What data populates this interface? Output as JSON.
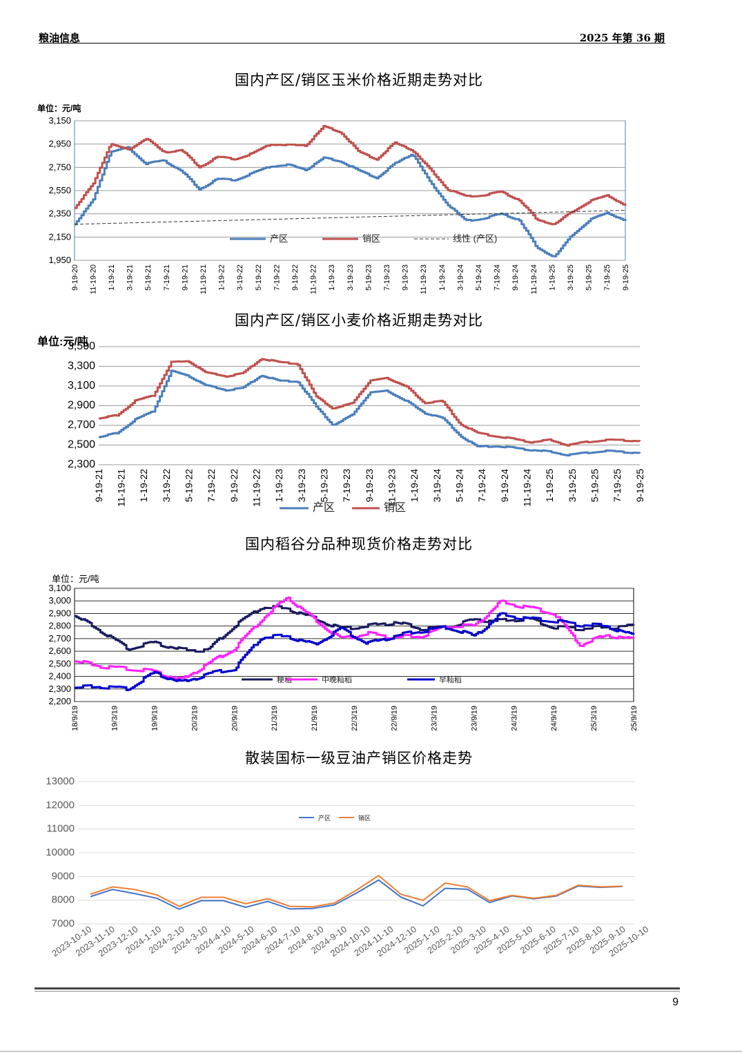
{
  "header": {
    "left": "粮油信息",
    "right": "2025 年第 36 期"
  },
  "page_number": "9",
  "colors": {
    "chanqu": "#4a7ebb",
    "xiaoqu": "#c0504d",
    "geng": "#1a1a5e",
    "zhongwan": "#ff22ff",
    "zao": "#0000cc",
    "oil_chanqu": "#4472c4",
    "oil_xiaoqu": "#ed7d31",
    "trend": "#333333"
  },
  "chart_data": [
    {
      "type": "line",
      "title": "国内产区/销区玉米价格近期走势对比",
      "ylabel": "单位：元/吨",
      "ylim": [
        1950,
        3150
      ],
      "yticks": [
        "1,950",
        "2,150",
        "2,350",
        "2,550",
        "2,750",
        "2,950",
        "3,150"
      ],
      "xticks": [
        "9-19-20",
        "11-19-20",
        "1-19-21",
        "3-19-21",
        "5-19-21",
        "7-19-21",
        "9-19-21",
        "11-19-21",
        "1-19-22",
        "3-19-22",
        "5-19-22",
        "7-19-22",
        "9-19-22",
        "11-19-22",
        "1-19-23",
        "3-19-23",
        "5-19-23",
        "7-19-23",
        "9-19-23",
        "11-19-23",
        "1-19-24",
        "3-19-24",
        "5-19-24",
        "7-19-24",
        "9-19-24",
        "11-19-24",
        "1-19-25",
        "3-19-25",
        "5-19-25",
        "7-19-25",
        "9-19-25"
      ],
      "grid": true,
      "legend_position": "bottom-right",
      "series": [
        {
          "name": "产区",
          "values": [
            2260,
            2460,
            2880,
            2920,
            2780,
            2810,
            2720,
            2560,
            2650,
            2640,
            2700,
            2760,
            2770,
            2730,
            2830,
            2800,
            2720,
            2660,
            2780,
            2870,
            2620,
            2430,
            2290,
            2310,
            2350,
            2300,
            2060,
            1980,
            2170,
            2300,
            2360,
            2290
          ]
        },
        {
          "name": "销区",
          "values": [
            2400,
            2600,
            2950,
            2900,
            3000,
            2880,
            2900,
            2750,
            2840,
            2820,
            2870,
            2950,
            2940,
            2940,
            3100,
            3050,
            2880,
            2820,
            2960,
            2900,
            2730,
            2560,
            2500,
            2510,
            2540,
            2470,
            2300,
            2260,
            2370,
            2460,
            2510,
            2420
          ]
        },
        {
          "name": "线性 (产区)",
          "values": [
            2260,
            2380
          ]
        }
      ]
    },
    {
      "type": "line",
      "title": "国内产区/销区小麦价格近期走势对比",
      "ylabel": "单位:元/吨",
      "ylim": [
        2300,
        3500
      ],
      "yticks": [
        "2,300",
        "2,500",
        "2,700",
        "2,900",
        "3,100",
        "3,300",
        "3,500"
      ],
      "xticks": [
        "9-19-21",
        "11-19-21",
        "1-19-22",
        "3-19-22",
        "5-19-22",
        "7-19-22",
        "9-19-22",
        "11-19-22",
        "1-19-23",
        "3-19-23",
        "5-19-23",
        "7-19-23",
        "9-19-23",
        "11-19-23",
        "1-19-24",
        "3-19-24",
        "5-19-24",
        "7-19-24",
        "9-19-24",
        "11-19-24",
        "1-19-25",
        "3-19-25",
        "5-19-25",
        "7-19-25",
        "9-19-25"
      ],
      "grid": true,
      "legend_position": "bottom",
      "series": [
        {
          "name": "产区",
          "values": [
            2580,
            2620,
            2760,
            2840,
            3250,
            3200,
            3100,
            3060,
            3080,
            3210,
            3150,
            3150,
            2900,
            2700,
            2800,
            3030,
            3050,
            2950,
            2830,
            2780,
            2600,
            2480,
            2490,
            2470,
            2450,
            2430,
            2400,
            2420,
            2440,
            2430,
            2420
          ]
        },
        {
          "name": "销区",
          "values": [
            2770,
            2800,
            2950,
            3000,
            3340,
            3350,
            3230,
            3200,
            3230,
            3380,
            3340,
            3330,
            3000,
            2870,
            2920,
            3150,
            3180,
            3100,
            2930,
            2950,
            2720,
            2620,
            2590,
            2560,
            2530,
            2550,
            2500,
            2530,
            2550,
            2550,
            2540
          ]
        }
      ]
    },
    {
      "type": "line",
      "title": "国内稻谷分品种现货价格走势对比",
      "ylabel": "单位：元/吨",
      "ylim": [
        2200,
        3100
      ],
      "yticks": [
        "2,200",
        "2,300",
        "2,400",
        "2,500",
        "2,600",
        "2,700",
        "2,800",
        "2,900",
        "3,000",
        "3,100"
      ],
      "xticks": [
        "18/9/19",
        "19/3/19",
        "19/9/19",
        "20/3/19",
        "20/9/19",
        "21/3/19",
        "21/9/19",
        "22/3/19",
        "22/9/19",
        "23/3/19",
        "23/9/19",
        "24/3/19",
        "24/9/19",
        "25/3/19",
        "25/9/19"
      ],
      "grid": true,
      "legend_position": "bottom",
      "series": [
        {
          "name": "粳稻",
          "values": [
            2880,
            2760,
            2620,
            2670,
            2610,
            2610,
            2800,
            2950,
            2940,
            2860,
            2780,
            2800,
            2830,
            2780,
            2790,
            2850,
            2840,
            2860,
            2790,
            2780,
            2790,
            2800
          ]
        },
        {
          "name": "中晚籼稻",
          "values": [
            2520,
            2480,
            2460,
            2440,
            2370,
            2500,
            2620,
            2850,
            3030,
            2850,
            2700,
            2740,
            2710,
            2720,
            2800,
            2800,
            2990,
            2950,
            2900,
            2650,
            2730,
            2690
          ]
        },
        {
          "name": "早籼稻",
          "values": [
            2310,
            2320,
            2300,
            2430,
            2350,
            2420,
            2460,
            2710,
            2720,
            2650,
            2780,
            2660,
            2720,
            2760,
            2790,
            2720,
            2890,
            2860,
            2840,
            2810,
            2800,
            2720
          ]
        }
      ]
    },
    {
      "type": "line",
      "title": "散装国标一级豆油产销区价格走势",
      "ylim": [
        7000,
        13000
      ],
      "yticks": [
        "7000",
        "8000",
        "9000",
        "10000",
        "11000",
        "12000",
        "13000"
      ],
      "categories": [
        "2023-10-10",
        "2023-11-10",
        "2023-12-10",
        "2024-1-10",
        "2024-2-10",
        "2024-3-10",
        "2024-4-10",
        "2024-5-10",
        "2024-6-10",
        "2024-7-10",
        "2024-8-10",
        "2024-9-10",
        "2024-10-10",
        "2024-11-10",
        "2024-12-10",
        "2025-1-10",
        "2025-2-10",
        "2025-3-10",
        "2025-4-10",
        "2025-5-10",
        "2025-6-10",
        "2025-7-10",
        "2025-8-10",
        "2025-9-10",
        "2025-10-10"
      ],
      "grid": true,
      "legend_position": "top",
      "series": [
        {
          "name": "产区",
          "values": [
            8150,
            8450,
            8280,
            8080,
            7620,
            7980,
            7980,
            7700,
            7950,
            7630,
            7650,
            7800,
            8300,
            8850,
            8130,
            7760,
            8500,
            8460,
            7900,
            8180,
            8060,
            8170,
            8600,
            8540,
            8580
          ]
        },
        {
          "name": "销区",
          "values": [
            8250,
            8560,
            8450,
            8220,
            7740,
            8120,
            8120,
            7850,
            8060,
            7740,
            7720,
            7880,
            8420,
            9040,
            8250,
            7990,
            8720,
            8560,
            7980,
            8200,
            8080,
            8200,
            8630,
            8560,
            8590
          ]
        }
      ]
    }
  ]
}
